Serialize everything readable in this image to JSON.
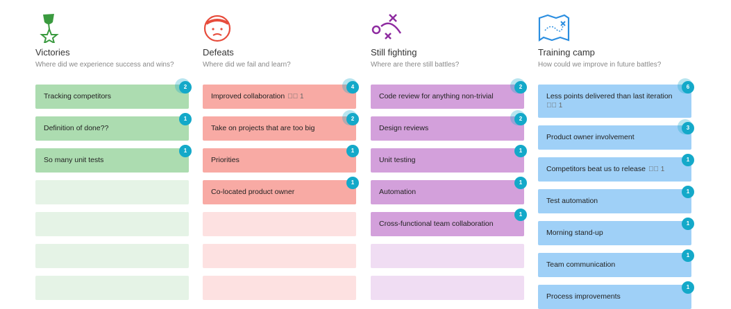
{
  "columns": [
    {
      "title": "Victories",
      "subtitle": "Where did we experience success and wins?",
      "color": "#acdcb0",
      "empty": "#e5f3e6",
      "cards": [
        {
          "text": "Tracking competitors",
          "votes": 2
        },
        {
          "text": "Definition of done??",
          "votes": 1
        },
        {
          "text": "So many unit tests",
          "votes": 1
        }
      ]
    },
    {
      "title": "Defeats",
      "subtitle": "Where did we fail and learn?",
      "color": "#f8aaa4",
      "empty": "#fde1e1",
      "cards": [
        {
          "text": "Improved collaboration",
          "checks": 1,
          "votes": 4
        },
        {
          "text": "Take on projects that are too big",
          "votes": 2
        },
        {
          "text": "Priorities",
          "votes": 1
        },
        {
          "text": "Co-located product owner",
          "votes": 1
        }
      ]
    },
    {
      "title": "Still fighting",
      "subtitle": "Where are there still battles?",
      "color": "#d3a0db",
      "empty": "#f0ddf3",
      "cards": [
        {
          "text": "Code review for anything non-trivial",
          "votes": 2
        },
        {
          "text": "Design reviews",
          "votes": 2
        },
        {
          "text": "Unit testing",
          "votes": 1
        },
        {
          "text": "Automation",
          "votes": 1
        },
        {
          "text": "Cross-functional team collaboration",
          "votes": 1
        }
      ]
    },
    {
      "title": "Training camp",
      "subtitle": "How could we improve in future battles?",
      "color": "#9fd0f7",
      "empty": "#e0f0fd",
      "cards": [
        {
          "text": "Less points delivered than last iteration",
          "checks": 1,
          "checks_below": true,
          "votes": 6
        },
        {
          "text": "Product owner involvement",
          "votes": 3
        },
        {
          "text": "Competitors beat us to release",
          "checks": 1,
          "votes": 1
        },
        {
          "text": "Test automation",
          "votes": 1
        },
        {
          "text": "Morning stand-up",
          "votes": 1
        },
        {
          "text": "Team communication",
          "votes": 1
        },
        {
          "text": "Process improvements",
          "votes": 1
        }
      ]
    }
  ]
}
